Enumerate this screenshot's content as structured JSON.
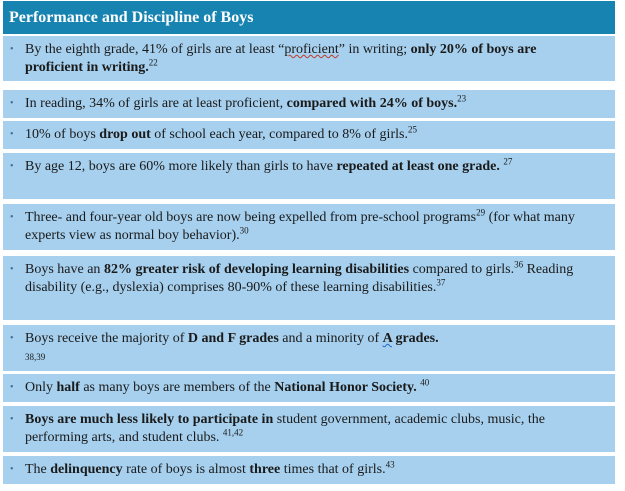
{
  "header": {
    "title": "Performance and Discipline of Boys"
  },
  "bullet_glyph": "•",
  "items": [
    {
      "p1": "By the eighth grade, 41% of girls are at least “",
      "p2": "proficient",
      "p3": "” in writing; ",
      "b1": "only 20% of boys are proficient in writing.",
      "s1": "22"
    },
    {
      "p1": "In reading, 34% of girls are at least proficient, ",
      "b1": "compared with 24% of boys.",
      "s1": "23"
    },
    {
      "p1": "10% of boys ",
      "b1": "drop out",
      "p2": " of school each year, compared to 8% of girls.",
      "s1": "25"
    },
    {
      "p1": "By age 12, boys are 60% more likely than girls to have ",
      "b1": "repeated at least one grade.",
      "s1": "27"
    },
    {
      "p1": "Three- and four-year old boys are now being expelled from pre-school programs",
      "s1": "29",
      "p2": " (for what many experts view as normal boy behavior).",
      "s2": "30"
    },
    {
      "p1": "Boys have an ",
      "b1": "82% greater risk of developing learning disabilities",
      "p2": " compared to girls.",
      "s1": "36",
      "p3": " Reading disability (e.g., dyslexia) comprises 80-90% of these learning disabilities.",
      "s2": "37"
    },
    {
      "p1": "Boys receive the majority of ",
      "b1": "D and F grades",
      "p2": " and a minority of ",
      "b2": "A",
      "b3": " grades.",
      "s1": "38,39"
    },
    {
      "p1": "Only ",
      "b1": "half",
      "p2": " as many boys are members of the ",
      "b2": "National Honor Society.",
      "s1": "40"
    },
    {
      "b1": "Boys are much less likely to participate in",
      "p1": " student government, academic clubs, music, the performing arts, and student clubs.",
      "s1": "41,42"
    },
    {
      "p1": "The ",
      "b1": "delinquency",
      "p2": " rate of boys is almost ",
      "b2": "three",
      "p3": " times that of girls.",
      "s1": "43"
    }
  ]
}
